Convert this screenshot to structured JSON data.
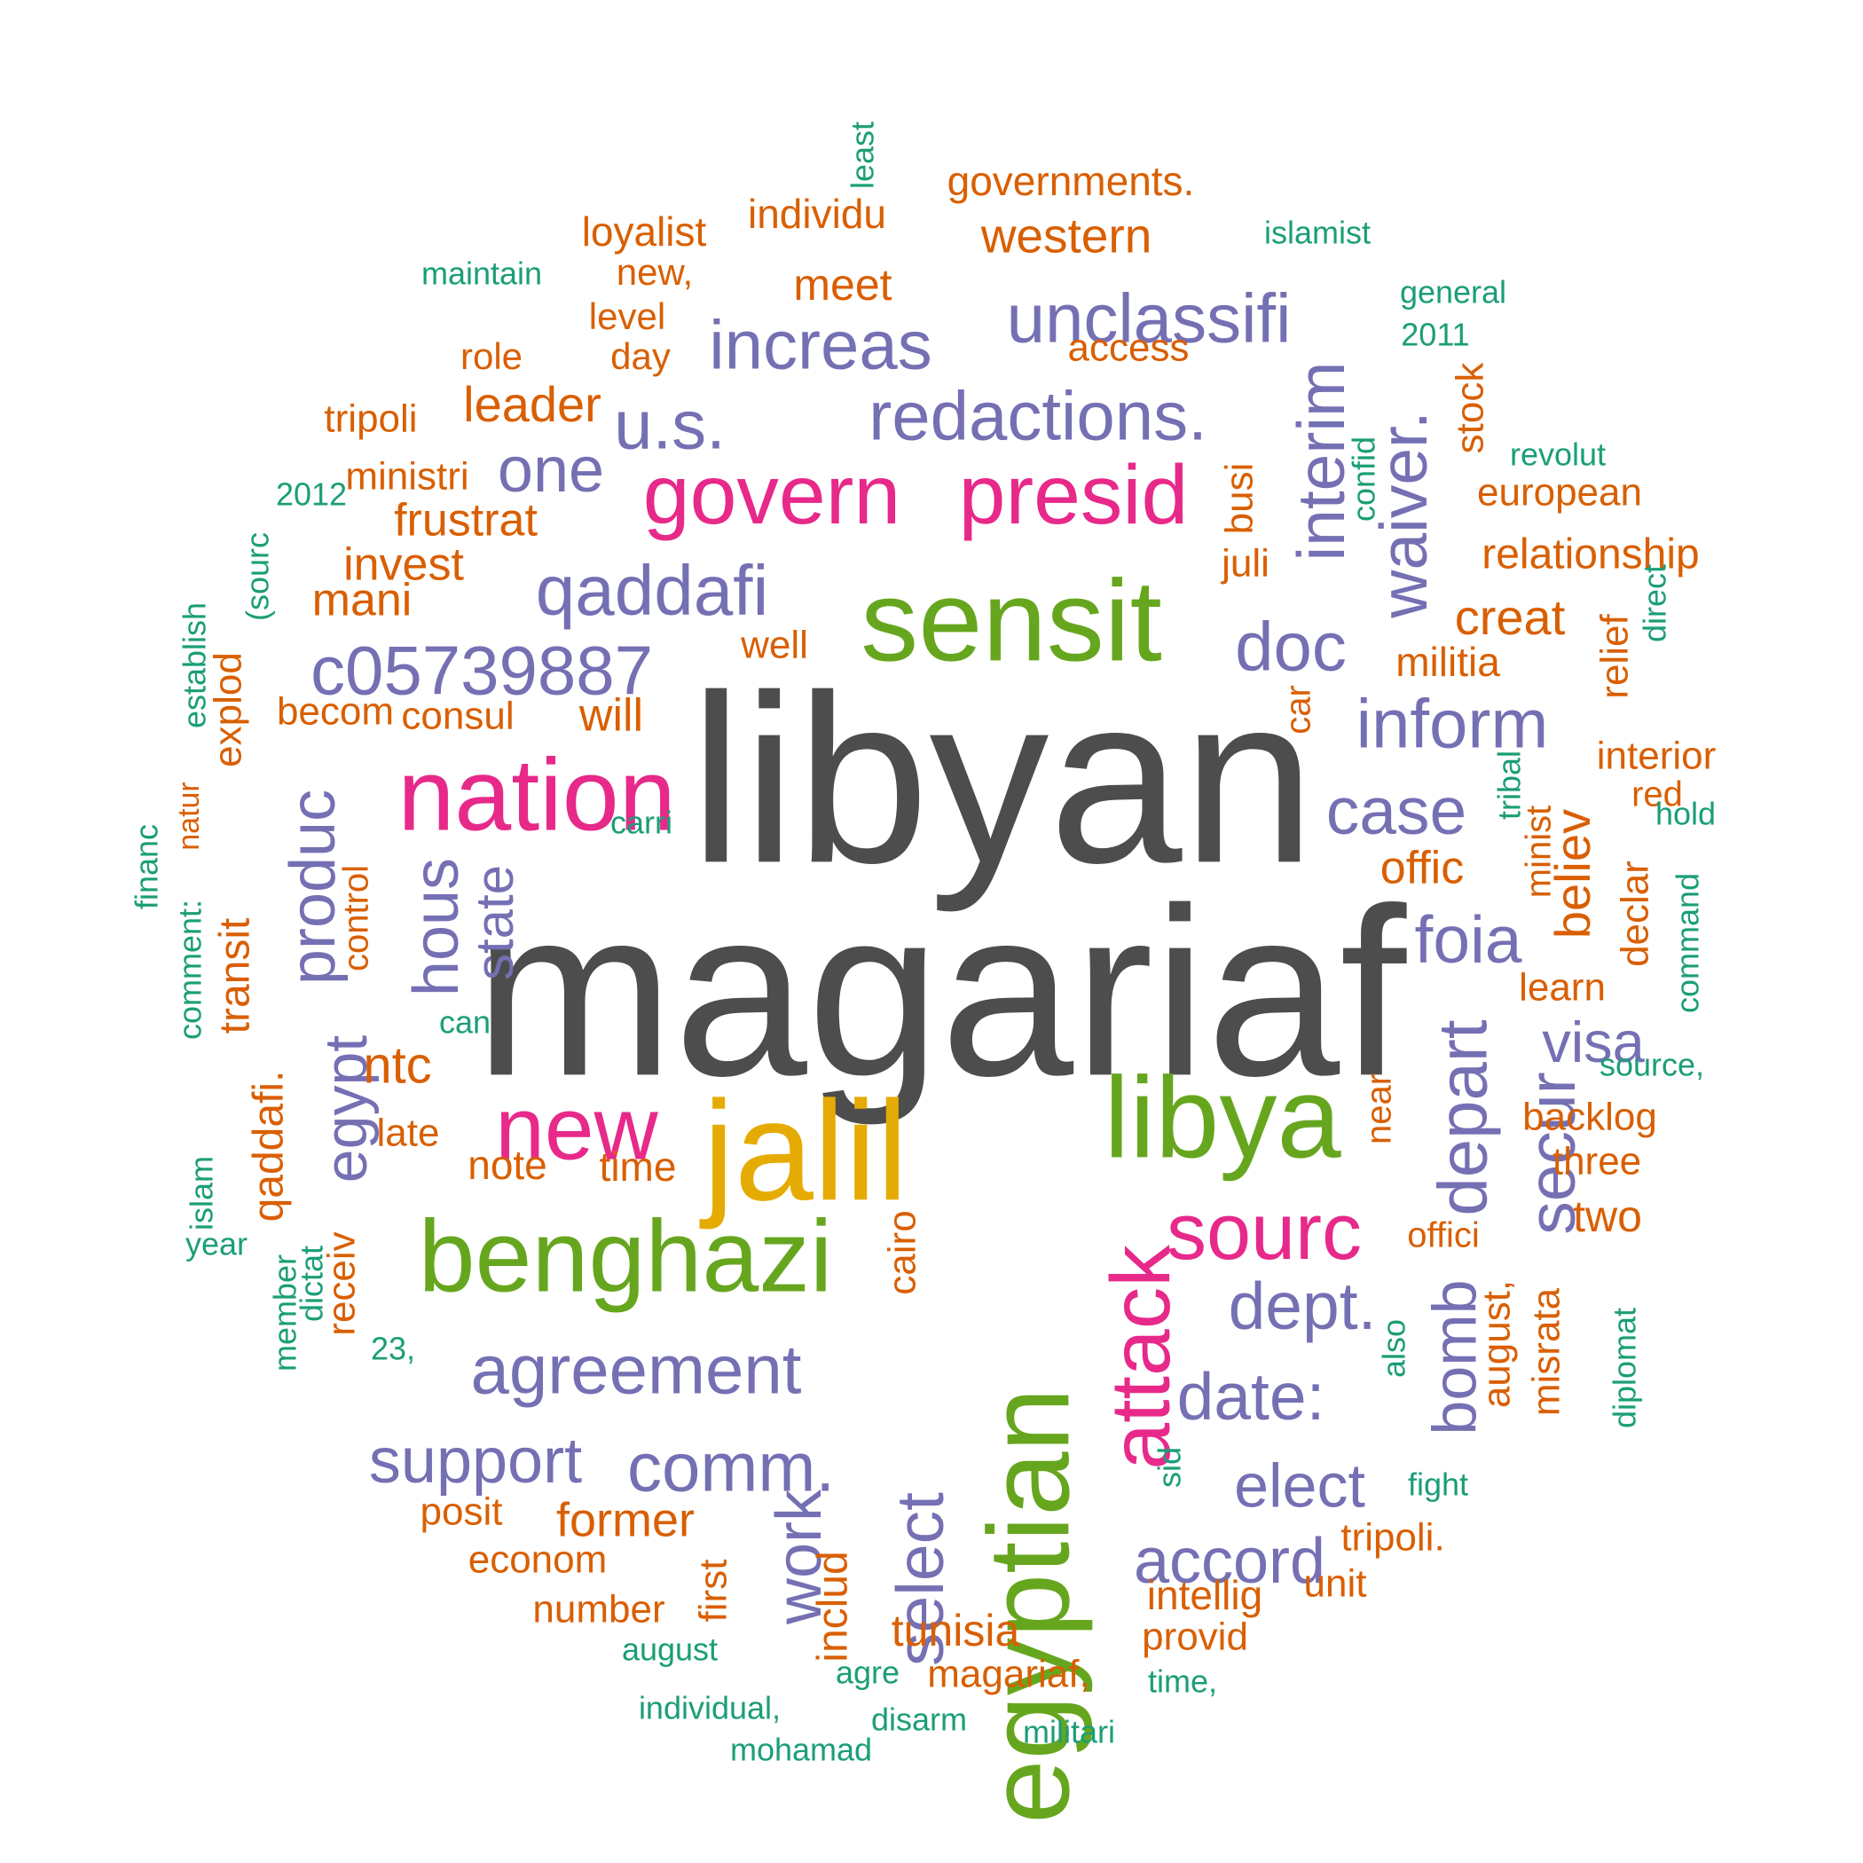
{
  "palette": {
    "grey": "#4d4d4d",
    "green": "#66a61e",
    "magenta": "#e7298a",
    "purple": "#7570b3",
    "orange": "#d95f02",
    "teal": "#1b9e77",
    "gold": "#e6ab02"
  },
  "words": [
    {
      "text": "libyan",
      "color": "grey"
    },
    {
      "text": "magariaf",
      "color": "grey"
    },
    {
      "text": "sensit",
      "color": "green"
    },
    {
      "text": "nation",
      "color": "magenta"
    },
    {
      "text": "jalil",
      "color": "gold"
    },
    {
      "text": "libya",
      "color": "green"
    },
    {
      "text": "egyptian",
      "color": "green"
    },
    {
      "text": "benghazi",
      "color": "green"
    },
    {
      "text": "new",
      "color": "magenta"
    },
    {
      "text": "govern",
      "color": "magenta"
    },
    {
      "text": "presid",
      "color": "magenta"
    },
    {
      "text": "attack",
      "color": "magenta"
    },
    {
      "text": "sourc",
      "color": "magenta"
    },
    {
      "text": "qaddafi",
      "color": "purple"
    },
    {
      "text": "c05739887",
      "color": "purple"
    },
    {
      "text": "redactions.",
      "color": "purple"
    },
    {
      "text": "unclassifi",
      "color": "purple"
    },
    {
      "text": "increas",
      "color": "purple"
    },
    {
      "text": "u.s.",
      "color": "purple"
    },
    {
      "text": "one",
      "color": "purple"
    },
    {
      "text": "interim",
      "color": "purple"
    },
    {
      "text": "waiver.",
      "color": "purple"
    },
    {
      "text": "doc",
      "color": "purple"
    },
    {
      "text": "inform",
      "color": "purple"
    },
    {
      "text": "case",
      "color": "purple"
    },
    {
      "text": "foia",
      "color": "purple"
    },
    {
      "text": "depart",
      "color": "purple"
    },
    {
      "text": "secur",
      "color": "purple"
    },
    {
      "text": "visa",
      "color": "purple"
    },
    {
      "text": "dept.",
      "color": "purple"
    },
    {
      "text": "date:",
      "color": "purple"
    },
    {
      "text": "bomb",
      "color": "purple"
    },
    {
      "text": "elect",
      "color": "purple"
    },
    {
      "text": "accord",
      "color": "purple"
    },
    {
      "text": "agreement",
      "color": "purple"
    },
    {
      "text": "support",
      "color": "purple"
    },
    {
      "text": "comm.",
      "color": "purple"
    },
    {
      "text": "select",
      "color": "purple"
    },
    {
      "text": "work",
      "color": "purple"
    },
    {
      "text": "produc",
      "color": "purple"
    },
    {
      "text": "hous",
      "color": "purple"
    },
    {
      "text": "state",
      "color": "purple"
    },
    {
      "text": "egypt",
      "color": "purple"
    },
    {
      "text": "western",
      "color": "orange"
    },
    {
      "text": "meet",
      "color": "orange"
    },
    {
      "text": "individu",
      "color": "orange"
    },
    {
      "text": "loyalist",
      "color": "orange"
    },
    {
      "text": "governments.",
      "color": "orange"
    },
    {
      "text": "new,",
      "color": "orange"
    },
    {
      "text": "level",
      "color": "orange"
    },
    {
      "text": "day",
      "color": "orange"
    },
    {
      "text": "role",
      "color": "orange"
    },
    {
      "text": "access",
      "color": "orange"
    },
    {
      "text": "leader",
      "color": "orange"
    },
    {
      "text": "tripoli",
      "color": "orange"
    },
    {
      "text": "ministri",
      "color": "orange"
    },
    {
      "text": "frustrat",
      "color": "orange"
    },
    {
      "text": "invest",
      "color": "orange"
    },
    {
      "text": "mani",
      "color": "orange"
    },
    {
      "text": "becom",
      "color": "orange"
    },
    {
      "text": "consul",
      "color": "orange"
    },
    {
      "text": "will",
      "color": "orange"
    },
    {
      "text": "well",
      "color": "orange"
    },
    {
      "text": "explod",
      "color": "orange"
    },
    {
      "text": "busi",
      "color": "orange"
    },
    {
      "text": "juli",
      "color": "orange"
    },
    {
      "text": "stock",
      "color": "orange"
    },
    {
      "text": "european",
      "color": "orange"
    },
    {
      "text": "relationship",
      "color": "orange"
    },
    {
      "text": "creat",
      "color": "orange"
    },
    {
      "text": "militia",
      "color": "orange"
    },
    {
      "text": "car",
      "color": "orange"
    },
    {
      "text": "relief",
      "color": "orange"
    },
    {
      "text": "interior",
      "color": "orange"
    },
    {
      "text": "red",
      "color": "orange"
    },
    {
      "text": "offic",
      "color": "orange"
    },
    {
      "text": "believ",
      "color": "orange"
    },
    {
      "text": "minist",
      "color": "orange"
    },
    {
      "text": "learn",
      "color": "orange"
    },
    {
      "text": "declar",
      "color": "orange"
    },
    {
      "text": "backlog",
      "color": "orange"
    },
    {
      "text": "three",
      "color": "orange"
    },
    {
      "text": "two",
      "color": "orange"
    },
    {
      "text": "near",
      "color": "orange"
    },
    {
      "text": "offici",
      "color": "orange"
    },
    {
      "text": "august,",
      "color": "orange"
    },
    {
      "text": "misrata",
      "color": "orange"
    },
    {
      "text": "natur",
      "color": "orange"
    },
    {
      "text": "transit",
      "color": "orange"
    },
    {
      "text": "control",
      "color": "orange"
    },
    {
      "text": "ntc",
      "color": "orange"
    },
    {
      "text": "qaddafi.",
      "color": "orange"
    },
    {
      "text": "late",
      "color": "orange"
    },
    {
      "text": "note",
      "color": "orange"
    },
    {
      "text": "time",
      "color": "orange"
    },
    {
      "text": "cairo",
      "color": "orange"
    },
    {
      "text": "receiv",
      "color": "orange"
    },
    {
      "text": "posit",
      "color": "orange"
    },
    {
      "text": "former",
      "color": "orange"
    },
    {
      "text": "econom",
      "color": "orange"
    },
    {
      "text": "number",
      "color": "orange"
    },
    {
      "text": "first",
      "color": "orange"
    },
    {
      "text": "includ",
      "color": "orange"
    },
    {
      "text": "tunisia",
      "color": "orange"
    },
    {
      "text": "magariaf,",
      "color": "orange"
    },
    {
      "text": "intellig",
      "color": "orange"
    },
    {
      "text": "provid",
      "color": "orange"
    },
    {
      "text": "unit",
      "color": "orange"
    },
    {
      "text": "tripoli.",
      "color": "orange"
    },
    {
      "text": "least",
      "color": "teal"
    },
    {
      "text": "islamist",
      "color": "teal"
    },
    {
      "text": "maintain",
      "color": "teal"
    },
    {
      "text": "general",
      "color": "teal"
    },
    {
      "text": "2011",
      "color": "teal"
    },
    {
      "text": "2012",
      "color": "teal"
    },
    {
      "text": "(sourc",
      "color": "teal"
    },
    {
      "text": "establish",
      "color": "teal"
    },
    {
      "text": "confid",
      "color": "teal"
    },
    {
      "text": "revolut",
      "color": "teal"
    },
    {
      "text": "direct",
      "color": "teal"
    },
    {
      "text": "tribal",
      "color": "teal"
    },
    {
      "text": "hold",
      "color": "teal"
    },
    {
      "text": "command",
      "color": "teal"
    },
    {
      "text": "source,",
      "color": "teal"
    },
    {
      "text": "carri",
      "color": "teal"
    },
    {
      "text": "financ",
      "color": "teal"
    },
    {
      "text": "comment:",
      "color": "teal"
    },
    {
      "text": "can",
      "color": "teal"
    },
    {
      "text": "islam",
      "color": "teal"
    },
    {
      "text": "year",
      "color": "teal"
    },
    {
      "text": "member",
      "color": "teal"
    },
    {
      "text": "dictat",
      "color": "teal"
    },
    {
      "text": "23,",
      "color": "teal"
    },
    {
      "text": "also",
      "color": "teal"
    },
    {
      "text": "diplomat",
      "color": "teal"
    },
    {
      "text": "sid",
      "color": "teal"
    },
    {
      "text": "fight",
      "color": "teal"
    },
    {
      "text": "august",
      "color": "teal"
    },
    {
      "text": "agre",
      "color": "teal"
    },
    {
      "text": "individual,",
      "color": "teal"
    },
    {
      "text": "disarm",
      "color": "teal"
    },
    {
      "text": "mohamad",
      "color": "teal"
    },
    {
      "text": "militari",
      "color": "teal"
    },
    {
      "text": "time,",
      "color": "teal"
    }
  ]
}
